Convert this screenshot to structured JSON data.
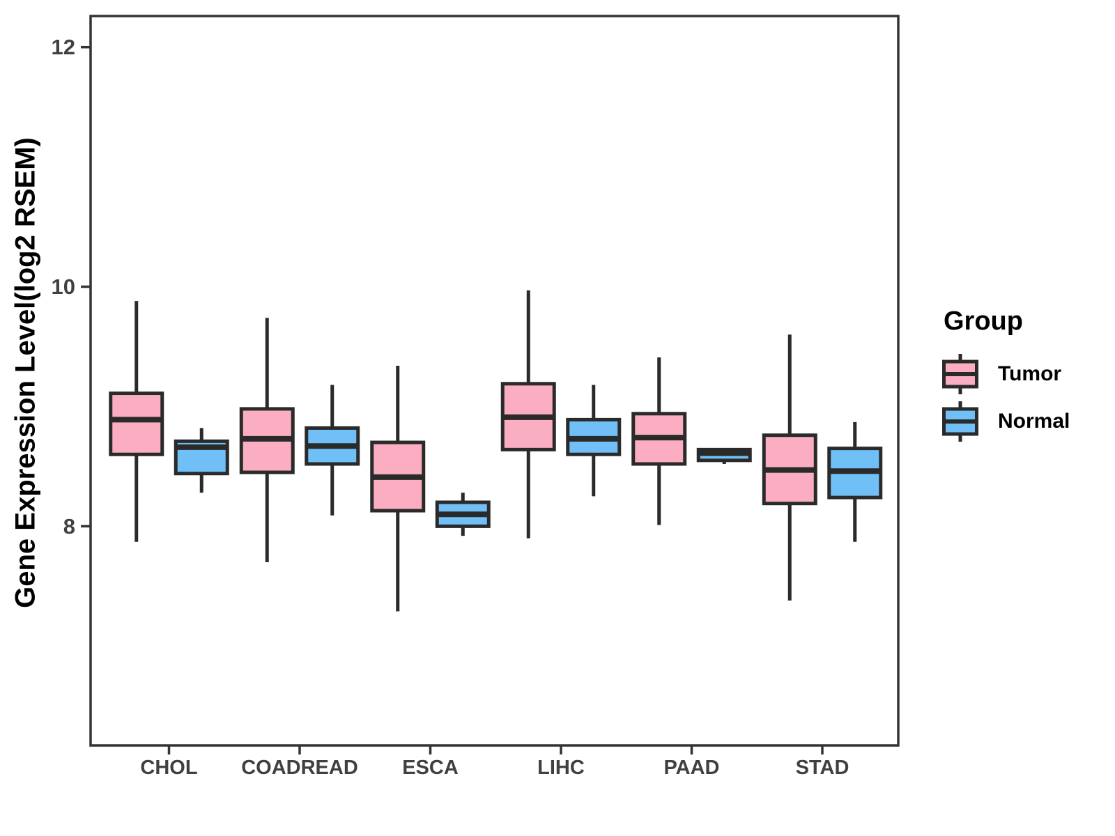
{
  "chart_data": {
    "type": "boxplot",
    "title": "",
    "ylabel": "Gene Expression Level(log2 RSEM)",
    "xlabel": "",
    "categories": [
      "CHOL",
      "COADREAD",
      "ESCA",
      "LIHC",
      "PAAD",
      "STAD"
    ],
    "yticks": [
      8,
      10,
      12
    ],
    "ylim": [
      6.17,
      12.26
    ],
    "grid": false,
    "legend": {
      "title": "Group",
      "position": "right"
    },
    "series": [
      {
        "name": "Tumor",
        "fill": "#FBAEC1",
        "boxes": [
          {
            "category": "CHOL",
            "whisker_low": 7.87,
            "q1": 8.6,
            "median": 8.89,
            "q3": 9.11,
            "whisker_high": 9.88
          },
          {
            "category": "COADREAD",
            "whisker_low": 7.7,
            "q1": 8.45,
            "median": 8.73,
            "q3": 8.98,
            "whisker_high": 9.74
          },
          {
            "category": "ESCA",
            "whisker_low": 7.29,
            "q1": 8.13,
            "median": 8.41,
            "q3": 8.7,
            "whisker_high": 9.34
          },
          {
            "category": "LIHC",
            "whisker_low": 7.9,
            "q1": 8.64,
            "median": 8.91,
            "q3": 9.19,
            "whisker_high": 9.97
          },
          {
            "category": "PAAD",
            "whisker_low": 8.01,
            "q1": 8.52,
            "median": 8.74,
            "q3": 8.94,
            "whisker_high": 9.41
          },
          {
            "category": "STAD",
            "whisker_low": 7.38,
            "q1": 8.19,
            "median": 8.47,
            "q3": 8.76,
            "whisker_high": 9.6
          }
        ]
      },
      {
        "name": "Normal",
        "fill": "#70BFF6",
        "boxes": [
          {
            "category": "CHOL",
            "whisker_low": 8.28,
            "q1": 8.44,
            "median": 8.66,
            "q3": 8.71,
            "whisker_high": 8.82
          },
          {
            "category": "COADREAD",
            "whisker_low": 8.09,
            "q1": 8.52,
            "median": 8.67,
            "q3": 8.82,
            "whisker_high": 9.18
          },
          {
            "category": "ESCA",
            "whisker_low": 7.92,
            "q1": 8.0,
            "median": 8.1,
            "q3": 8.2,
            "whisker_high": 8.28
          },
          {
            "category": "LIHC",
            "whisker_low": 8.25,
            "q1": 8.6,
            "median": 8.73,
            "q3": 8.89,
            "whisker_high": 9.18
          },
          {
            "category": "PAAD",
            "whisker_low": 8.52,
            "q1": 8.55,
            "median": 8.61,
            "q3": 8.64,
            "whisker_high": 8.65
          },
          {
            "category": "STAD",
            "whisker_low": 7.87,
            "q1": 8.24,
            "median": 8.46,
            "q3": 8.65,
            "whisker_high": 8.87
          }
        ]
      }
    ],
    "styles": {
      "box_border": "#2A2A2A",
      "panel_border": "#333333",
      "tick_color": "#333333",
      "tick_text_color": "#404040"
    }
  }
}
